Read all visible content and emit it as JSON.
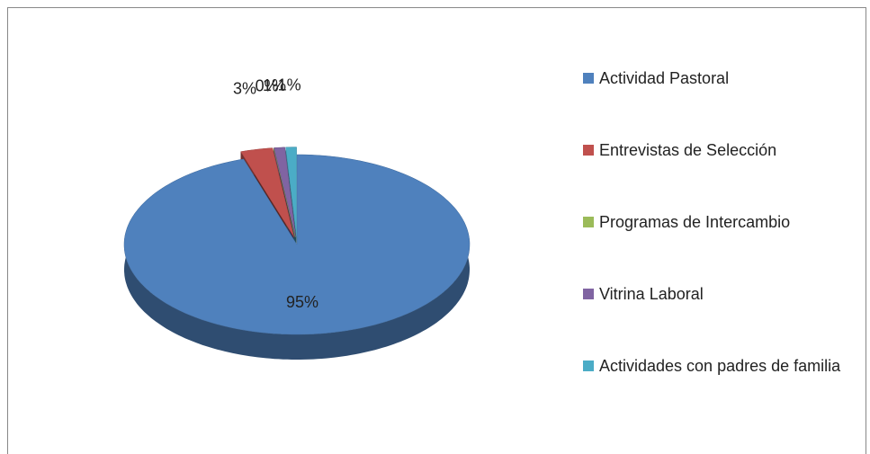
{
  "chart_data": {
    "type": "pie",
    "categories": [
      "Actividad Pastoral",
      "Entrevistas de Selección",
      "Programas de Intercambio",
      "Vitrina Laboral",
      "Actividades con padres de familia"
    ],
    "values": [
      95,
      3,
      0,
      1,
      1
    ],
    "value_labels": [
      "95%",
      "3%",
      "0%",
      "1%",
      "1%"
    ],
    "colors": [
      "#4f81bd",
      "#c0504d",
      "#9bbb59",
      "#8064a2",
      "#4bacc6"
    ],
    "legend": "right"
  }
}
